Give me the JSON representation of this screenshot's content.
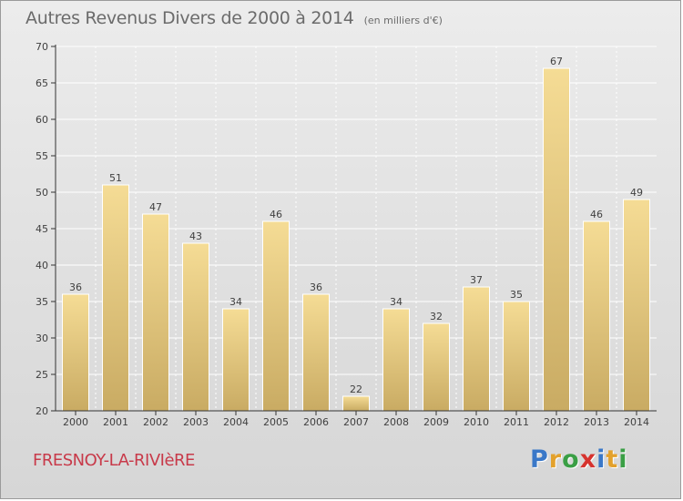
{
  "header": {
    "title": "Autres Revenus Divers de 2000 à 2014",
    "unit": "(en milliers d'€)"
  },
  "footer": {
    "commune": "FRESNOY-LA-RIVIèRE",
    "logo_letters": [
      "P",
      "r",
      "o",
      "x",
      "i",
      "t",
      "i"
    ],
    "logo_colors": [
      "#3a78c8",
      "#e3a12c",
      "#3a9f45",
      "#d6332e",
      "#3a78c8",
      "#e3a12c",
      "#3a9f45"
    ]
  },
  "chart_data": {
    "type": "bar",
    "title": "Autres Revenus Divers de 2000 à 2014",
    "subtitle": "(en milliers d'€)",
    "categories": [
      "2000",
      "2001",
      "2002",
      "2003",
      "2004",
      "2005",
      "2006",
      "2007",
      "2008",
      "2009",
      "2010",
      "2011",
      "2012",
      "2013",
      "2014"
    ],
    "values": [
      36,
      51,
      47,
      43,
      34,
      46,
      36,
      22,
      34,
      32,
      37,
      35,
      67,
      46,
      49
    ],
    "ylim": [
      20,
      70
    ],
    "yticks": [
      20,
      25,
      30,
      35,
      40,
      45,
      50,
      55,
      60,
      65,
      70
    ],
    "grid": true,
    "colors": {
      "bar_light": "#f5dc95",
      "bar_dark": "#c9ab63",
      "bar_edge": "#ffffff",
      "grid": "#ffffff",
      "axis": "#333333"
    }
  }
}
